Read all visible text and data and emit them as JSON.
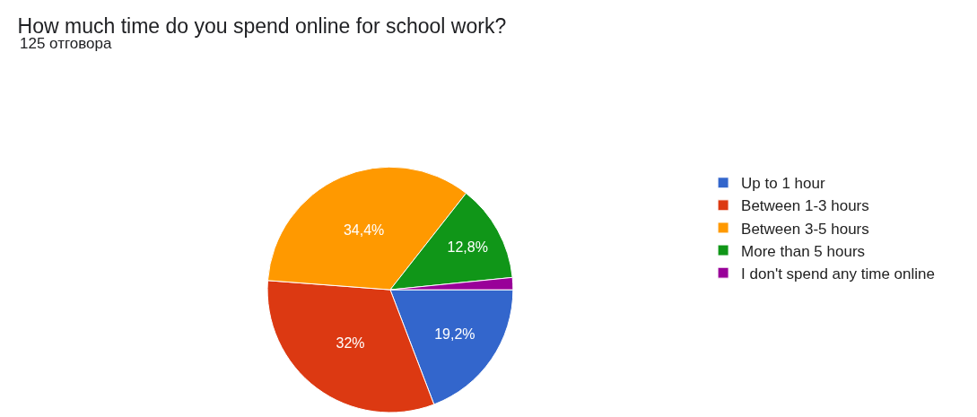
{
  "chart_data": {
    "type": "pie",
    "title": "How much time do you spend online for school work?",
    "subtitle": "125 отговора",
    "categories": [
      "Up to 1 hour",
      "Between 1-3 hours",
      "Between 3-5 hours",
      "More than 5 hours",
      "I don't spend any time online"
    ],
    "values": [
      19.2,
      32,
      34.4,
      12.8,
      1.6
    ],
    "value_labels": [
      "19,2%",
      "32%",
      "34,4%",
      "12,8%",
      null
    ],
    "colors": [
      "#3366cc",
      "#dc3912",
      "#ff9900",
      "#109618",
      "#990099"
    ],
    "legend": "right"
  }
}
